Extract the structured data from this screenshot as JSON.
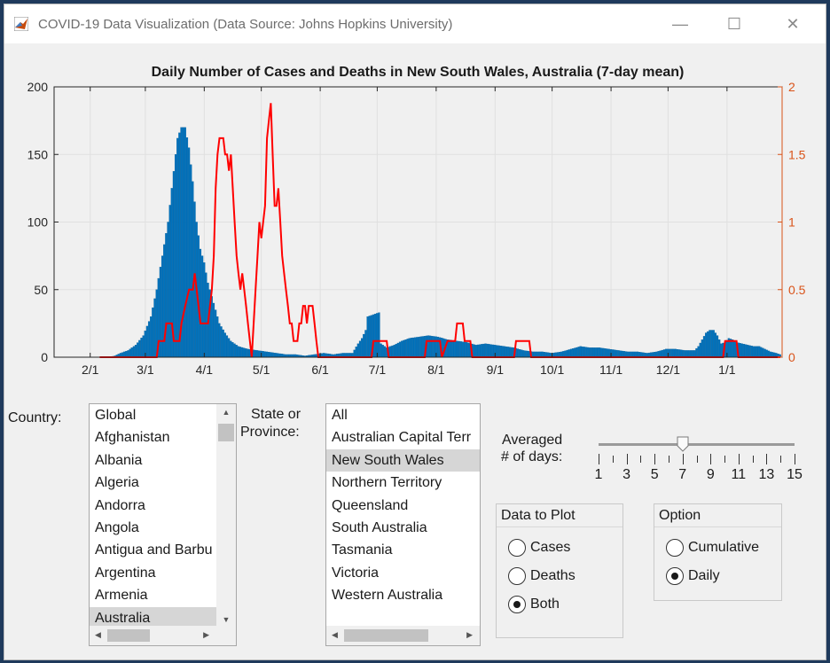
{
  "window": {
    "title": "COVID-19 Data Visualization (Data Source: Johns Hopkins University)",
    "minimize_icon": "minimize-icon",
    "maximize_icon": "maximize-icon",
    "close_icon": "close-icon"
  },
  "controls": {
    "country_label": "Country:",
    "state_label_line1": "State or",
    "state_label_line2": "Province:",
    "averaged_label_line1": "Averaged",
    "averaged_label_line2": "# of days:"
  },
  "country_list": {
    "items": [
      "Global",
      "Afghanistan",
      "Albania",
      "Algeria",
      "Andorra",
      "Angola",
      "Antigua and Barbu",
      "Argentina",
      "Armenia",
      "Australia"
    ],
    "selected": "Australia"
  },
  "state_list": {
    "items": [
      "All",
      "Australian Capital Terr",
      "New South Wales",
      "Northern Territory",
      "Queensland",
      "South Australia",
      "Tasmania",
      "Victoria",
      "Western Australia"
    ],
    "selected": "New South Wales"
  },
  "slider": {
    "value": 7,
    "min": 1,
    "max": 15,
    "tick_labels": [
      "1",
      "3",
      "5",
      "7",
      "9",
      "11",
      "13",
      "15"
    ]
  },
  "data_panel": {
    "title": "Data to Plot",
    "options": [
      "Cases",
      "Deaths",
      "Both"
    ],
    "selected": "Both"
  },
  "option_panel": {
    "title": "Option",
    "options": [
      "Cumulative",
      "Daily"
    ],
    "selected": "Daily"
  },
  "colors": {
    "bar": "#0072bd",
    "line": "#ff0000",
    "right_axis": "#d95319",
    "grid": "#e0e0e0"
  },
  "chart_data": {
    "type": "bar",
    "title": "Daily Number of Cases and Deaths in New South Wales, Australia (7-day mean)",
    "x_tick_labels": [
      "2/1",
      "3/1",
      "4/1",
      "5/1",
      "6/1",
      "7/1",
      "8/1",
      "9/1",
      "10/1",
      "11/1",
      "12/1",
      "1/1"
    ],
    "y_left_ticks": [
      "0",
      "50",
      "100",
      "150",
      "200"
    ],
    "y_left_lim": [
      0,
      200
    ],
    "y_right_ticks": [
      "0",
      "0.5",
      "1",
      "1.5",
      "2"
    ],
    "y_right_lim": [
      0,
      2
    ],
    "grid": true,
    "series": [
      {
        "name": "Cases",
        "axis": "left",
        "kind": "bar",
        "points": [
          [
            37,
            0
          ],
          [
            42,
            0
          ],
          [
            45,
            1
          ],
          [
            48,
            3
          ],
          [
            52,
            5
          ],
          [
            56,
            9
          ],
          [
            60,
            16
          ],
          [
            64,
            30
          ],
          [
            67,
            50
          ],
          [
            70,
            75
          ],
          [
            73,
            100
          ],
          [
            75,
            125
          ],
          [
            77,
            150
          ],
          [
            78,
            162
          ],
          [
            80,
            170
          ],
          [
            82,
            170
          ],
          [
            84,
            155
          ],
          [
            86,
            130
          ],
          [
            88,
            100
          ],
          [
            90,
            80
          ],
          [
            92,
            70
          ],
          [
            94,
            55
          ],
          [
            96,
            45
          ],
          [
            98,
            35
          ],
          [
            100,
            25
          ],
          [
            103,
            18
          ],
          [
            106,
            12
          ],
          [
            110,
            8
          ],
          [
            115,
            6
          ],
          [
            120,
            5
          ],
          [
            125,
            4
          ],
          [
            130,
            3
          ],
          [
            135,
            2
          ],
          [
            140,
            2
          ],
          [
            145,
            1
          ],
          [
            150,
            2
          ],
          [
            155,
            3
          ],
          [
            160,
            2
          ],
          [
            165,
            3
          ],
          [
            170,
            3
          ],
          [
            173,
            10
          ],
          [
            175,
            14
          ],
          [
            177,
            20
          ],
          [
            178,
            30
          ],
          [
            180,
            31
          ],
          [
            182,
            32
          ],
          [
            184,
            33
          ],
          [
            185,
            10
          ],
          [
            188,
            7
          ],
          [
            192,
            9
          ],
          [
            196,
            12
          ],
          [
            200,
            14
          ],
          [
            205,
            15
          ],
          [
            210,
            16
          ],
          [
            215,
            15
          ],
          [
            220,
            13
          ],
          [
            225,
            12
          ],
          [
            230,
            11
          ],
          [
            235,
            9
          ],
          [
            240,
            10
          ],
          [
            245,
            9
          ],
          [
            250,
            8
          ],
          [
            255,
            7
          ],
          [
            260,
            5
          ],
          [
            265,
            4
          ],
          [
            270,
            4
          ],
          [
            275,
            3
          ],
          [
            280,
            4
          ],
          [
            285,
            6
          ],
          [
            290,
            8
          ],
          [
            295,
            7
          ],
          [
            300,
            7
          ],
          [
            305,
            6
          ],
          [
            310,
            5
          ],
          [
            315,
            4
          ],
          [
            320,
            4
          ],
          [
            325,
            3
          ],
          [
            330,
            4
          ],
          [
            335,
            6
          ],
          [
            340,
            6
          ],
          [
            345,
            5
          ],
          [
            350,
            5
          ],
          [
            352,
            8
          ],
          [
            354,
            13
          ],
          [
            356,
            18
          ],
          [
            358,
            20
          ],
          [
            360,
            20
          ],
          [
            362,
            16
          ],
          [
            364,
            10
          ],
          [
            366,
            11
          ],
          [
            368,
            14
          ],
          [
            370,
            13
          ],
          [
            372,
            11
          ],
          [
            375,
            10
          ],
          [
            378,
            9
          ],
          [
            381,
            8
          ],
          [
            384,
            8
          ],
          [
            387,
            6
          ],
          [
            390,
            4
          ],
          [
            393,
            3
          ],
          [
            395,
            2
          ]
        ]
      },
      {
        "name": "Deaths",
        "axis": "right",
        "kind": "line",
        "points": [
          [
            37,
            0
          ],
          [
            67,
            0
          ],
          [
            68,
            0.12
          ],
          [
            71,
            0.12
          ],
          [
            72,
            0.25
          ],
          [
            75,
            0.25
          ],
          [
            76,
            0.12
          ],
          [
            79,
            0.12
          ],
          [
            80,
            0.25
          ],
          [
            82,
            0.38
          ],
          [
            84,
            0.5
          ],
          [
            86,
            0.5
          ],
          [
            87,
            0.62
          ],
          [
            89,
            0.38
          ],
          [
            90,
            0.25
          ],
          [
            94,
            0.25
          ],
          [
            96,
            0.5
          ],
          [
            97,
            0.75
          ],
          [
            98,
            1.25
          ],
          [
            99,
            1.5
          ],
          [
            100,
            1.62
          ],
          [
            102,
            1.62
          ],
          [
            103,
            1.5
          ],
          [
            104,
            1.5
          ],
          [
            105,
            1.38
          ],
          [
            106,
            1.5
          ],
          [
            107,
            1.25
          ],
          [
            108,
            1.0
          ],
          [
            109,
            0.75
          ],
          [
            110,
            0.62
          ],
          [
            111,
            0.5
          ],
          [
            112,
            0.62
          ],
          [
            113,
            0.5
          ],
          [
            114,
            0.38
          ],
          [
            115,
            0.25
          ],
          [
            116,
            0.12
          ],
          [
            117,
            0.0
          ],
          [
            119,
            0.5
          ],
          [
            120,
            0.75
          ],
          [
            121,
            1.0
          ],
          [
            122,
            0.88
          ],
          [
            123,
            1.0
          ],
          [
            124,
            1.12
          ],
          [
            125,
            1.62
          ],
          [
            126,
            1.75
          ],
          [
            127,
            1.88
          ],
          [
            128,
            1.5
          ],
          [
            129,
            1.12
          ],
          [
            130,
            1.12
          ],
          [
            131,
            1.25
          ],
          [
            132,
            1.0
          ],
          [
            133,
            0.75
          ],
          [
            134,
            0.62
          ],
          [
            135,
            0.5
          ],
          [
            136,
            0.38
          ],
          [
            137,
            0.25
          ],
          [
            138,
            0.25
          ],
          [
            139,
            0.12
          ],
          [
            140,
            0.12
          ],
          [
            141,
            0.12
          ],
          [
            142,
            0.25
          ],
          [
            143,
            0.25
          ],
          [
            144,
            0.38
          ],
          [
            145,
            0.38
          ],
          [
            146,
            0.25
          ],
          [
            147,
            0.38
          ],
          [
            149,
            0.38
          ],
          [
            150,
            0.25
          ],
          [
            151,
            0.12
          ],
          [
            152,
            0.0
          ],
          [
            180,
            0.0
          ],
          [
            181,
            0.12
          ],
          [
            188,
            0.12
          ],
          [
            189,
            0.0
          ],
          [
            208,
            0.0
          ],
          [
            209,
            0.12
          ],
          [
            216,
            0.12
          ],
          [
            217,
            0.0
          ],
          [
            220,
            0.12
          ],
          [
            224,
            0.12
          ],
          [
            225,
            0.25
          ],
          [
            228,
            0.25
          ],
          [
            229,
            0.12
          ],
          [
            232,
            0.12
          ],
          [
            233,
            0.0
          ],
          [
            255,
            0.0
          ],
          [
            256,
            0.12
          ],
          [
            263,
            0.12
          ],
          [
            264,
            0.0
          ],
          [
            365,
            0.0
          ],
          [
            366,
            0.12
          ],
          [
            372,
            0.12
          ],
          [
            373,
            0.0
          ],
          [
            395,
            0.0
          ]
        ]
      }
    ]
  }
}
